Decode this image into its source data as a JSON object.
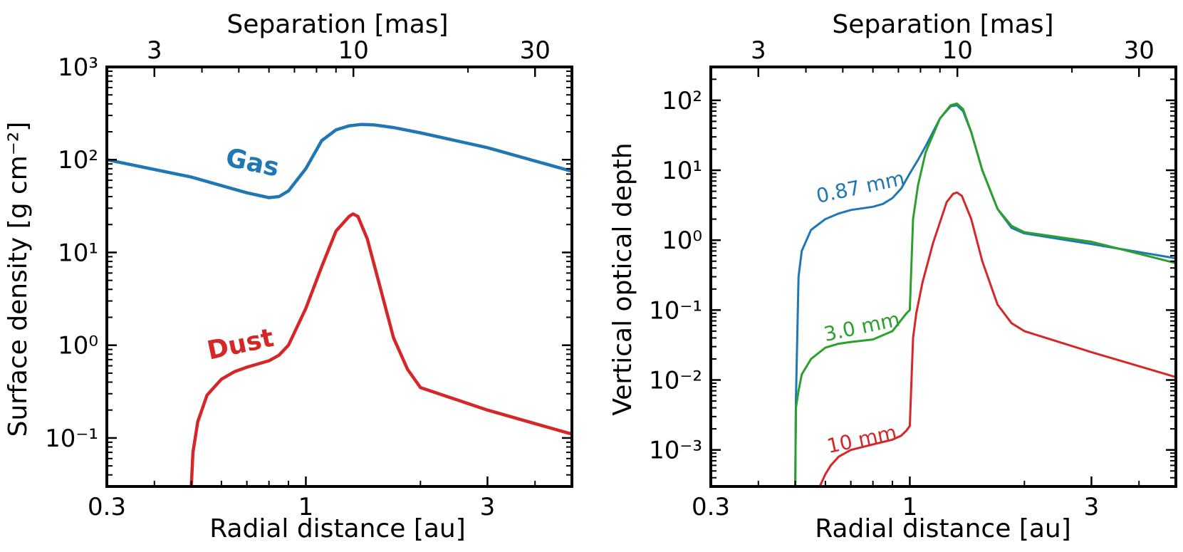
{
  "colors": {
    "gas": "#1f77b4",
    "dust": "#d62728",
    "green": "#2ca02c"
  },
  "chart_data": [
    {
      "type": "line",
      "xscale": "log",
      "yscale": "log",
      "xlim": [
        0.3,
        5
      ],
      "ylim": [
        0.03,
        1000
      ],
      "xlabel": "Radial distance [au]",
      "ylabel": "Surface density [g cm⁻²]",
      "secondary_xlabel": "Separation [mas]",
      "x_ticks": [
        {
          "v": 0.3,
          "label": "0.3"
        },
        {
          "v": 1,
          "label": "1"
        },
        {
          "v": 3,
          "label": "3"
        }
      ],
      "top_ticks": [
        {
          "v": 3,
          "label": "3"
        },
        {
          "v": 10,
          "label": "10"
        },
        {
          "v": 30,
          "label": "30"
        }
      ],
      "y_ticks": [
        {
          "v": 0.1,
          "label": "10⁻¹"
        },
        {
          "v": 1,
          "label": "10⁰"
        },
        {
          "v": 10,
          "label": "10¹"
        },
        {
          "v": 100,
          "label": "10²"
        },
        {
          "v": 1000,
          "label": "10³"
        }
      ],
      "series": [
        {
          "name": "Gas",
          "color": "#1f77b4",
          "annotation": "Gas",
          "x": [
            0.3,
            0.5,
            0.7,
            0.8,
            0.85,
            0.9,
            1.0,
            1.1,
            1.2,
            1.3,
            1.4,
            1.5,
            1.6,
            1.7,
            2.0,
            3.0,
            5.0
          ],
          "y": [
            100,
            65,
            44,
            39,
            40,
            46,
            80,
            160,
            210,
            232,
            240,
            238,
            230,
            222,
            195,
            135,
            75
          ]
        },
        {
          "name": "Dust",
          "color": "#d62728",
          "annotation": "Dust",
          "x": [
            0.5,
            0.505,
            0.52,
            0.55,
            0.6,
            0.65,
            0.7,
            0.8,
            0.85,
            0.9,
            1.0,
            1.1,
            1.2,
            1.3,
            1.33,
            1.37,
            1.45,
            1.55,
            1.7,
            1.85,
            2.0,
            3.0,
            5.0
          ],
          "y": [
            0.03,
            0.07,
            0.15,
            0.29,
            0.43,
            0.52,
            0.58,
            0.68,
            0.78,
            1.0,
            2.5,
            7,
            17,
            24.5,
            26,
            24.5,
            14,
            5,
            1.2,
            0.55,
            0.35,
            0.2,
            0.11
          ]
        }
      ]
    },
    {
      "type": "line",
      "xscale": "log",
      "yscale": "log",
      "xlim": [
        0.3,
        5
      ],
      "ylim": [
        0.0003,
        300
      ],
      "xlabel": "Radial distance [au]",
      "ylabel": "Vertical optical depth",
      "secondary_xlabel": "Separation [mas]",
      "x_ticks": [
        {
          "v": 0.3,
          "label": "0.3"
        },
        {
          "v": 1,
          "label": "1"
        },
        {
          "v": 3,
          "label": "3"
        }
      ],
      "top_ticks": [
        {
          "v": 3,
          "label": "3"
        },
        {
          "v": 10,
          "label": "10"
        },
        {
          "v": 30,
          "label": "30"
        }
      ],
      "y_ticks": [
        {
          "v": 0.001,
          "label": "10⁻³"
        },
        {
          "v": 0.01,
          "label": "10⁻²"
        },
        {
          "v": 0.1,
          "label": "10⁻¹"
        },
        {
          "v": 1,
          "label": "10⁰"
        },
        {
          "v": 10,
          "label": "10¹"
        },
        {
          "v": 100,
          "label": "10²"
        }
      ],
      "series": [
        {
          "name": "0.87 mm",
          "color": "#1f77b4",
          "annotation": "0.87 mm",
          "x": [
            0.5,
            0.502,
            0.51,
            0.52,
            0.55,
            0.6,
            0.65,
            0.7,
            0.8,
            0.85,
            0.9,
            0.95,
            1.0,
            1.05,
            1.1,
            1.2,
            1.28,
            1.33,
            1.38,
            1.45,
            1.55,
            1.7,
            1.85,
            2.0,
            3.0,
            5.0
          ],
          "y": [
            0.0003,
            0.005,
            0.3,
            0.7,
            1.4,
            2.0,
            2.4,
            2.7,
            3.0,
            3.3,
            4.0,
            5.5,
            9,
            14,
            22,
            55,
            82,
            85,
            70,
            35,
            10,
            2.8,
            1.5,
            1.25,
            0.88,
            0.55
          ]
        },
        {
          "name": "3.0 mm",
          "color": "#2ca02c",
          "annotation": "3.0 mm",
          "x": [
            0.5,
            0.502,
            0.51,
            0.52,
            0.55,
            0.6,
            0.65,
            0.7,
            0.8,
            0.9,
            0.98,
            1.0,
            1.02,
            1.05,
            1.1,
            1.2,
            1.28,
            1.33,
            1.38,
            1.45,
            1.55,
            1.7,
            1.85,
            2.0,
            3.0,
            5.0
          ],
          "y": [
            0.0003,
            0.004,
            0.007,
            0.012,
            0.02,
            0.029,
            0.033,
            0.035,
            0.038,
            0.05,
            0.09,
            0.1,
            2.0,
            6,
            18,
            55,
            85,
            90,
            75,
            35,
            10,
            2.8,
            1.6,
            1.3,
            0.95,
            0.47
          ]
        },
        {
          "name": "10 mm",
          "color": "#d62728",
          "annotation": "10 mm",
          "x": [
            0.58,
            0.6,
            0.62,
            0.65,
            0.7,
            0.8,
            0.9,
            0.95,
            0.98,
            1.0,
            1.02,
            1.04,
            1.08,
            1.15,
            1.25,
            1.3,
            1.33,
            1.37,
            1.45,
            1.55,
            1.7,
            1.85,
            2.0,
            3.0,
            5.0
          ],
          "y": [
            0.0003,
            0.00045,
            0.0006,
            0.0008,
            0.001,
            0.0012,
            0.0014,
            0.0016,
            0.0019,
            0.0022,
            0.04,
            0.09,
            0.25,
            0.9,
            3.5,
            4.6,
            4.8,
            4.3,
            2.0,
            0.5,
            0.12,
            0.065,
            0.05,
            0.025,
            0.011
          ]
        }
      ]
    }
  ]
}
